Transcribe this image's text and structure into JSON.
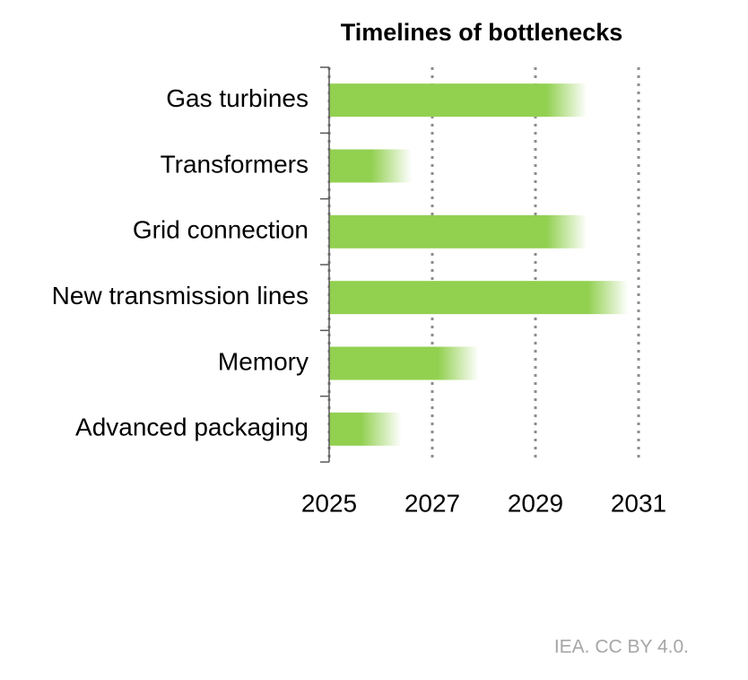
{
  "chart_data": {
    "type": "bar",
    "orientation": "horizontal",
    "title": "Timelines of bottlenecks",
    "categories": [
      "Gas turbines",
      "Transformers",
      "Grid connection",
      "New transmission lines",
      "Memory",
      "Advanced packaging"
    ],
    "values": [
      2030,
      2026.6,
      2030,
      2030.8,
      2027.9,
      2026.4
    ],
    "color": "#92d050",
    "xlim": [
      2025,
      2031
    ],
    "xticks": [
      2025,
      2027,
      2029,
      2031
    ],
    "grid": true,
    "source": "IEA. CC BY 4.0."
  }
}
